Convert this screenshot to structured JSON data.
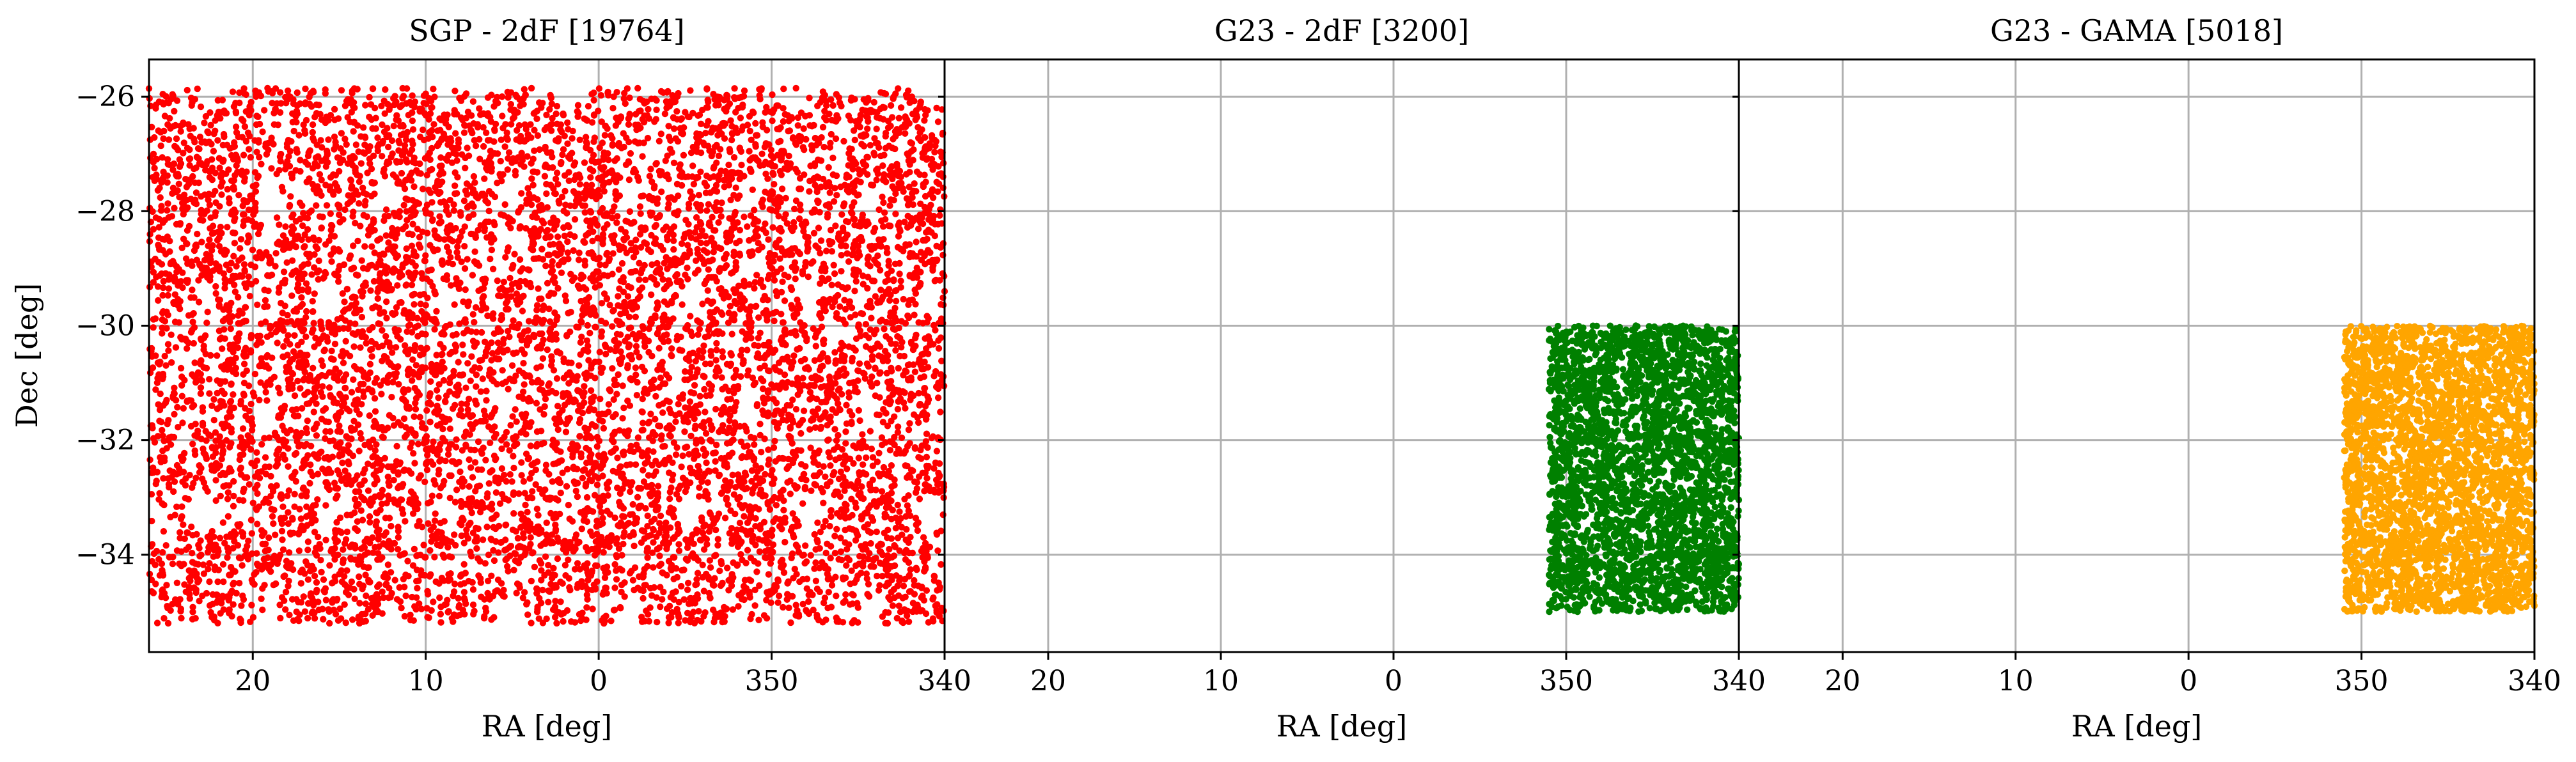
{
  "chart_data": [
    {
      "type": "scatter",
      "title": "SGP - 2dF [19764]",
      "xlabel": "RA [deg]",
      "ylabel": "Dec [deg]",
      "xticks": [
        "20",
        "10",
        "0",
        "350",
        "340"
      ],
      "yticks": [
        "−26",
        "−28",
        "−30",
        "−32",
        "−34"
      ],
      "x_range_deg": [
        26,
        -20
      ],
      "ylim": [
        -35.7,
        -25.35
      ],
      "grid": true,
      "color": "#ff0000",
      "point_count": 19764,
      "region": {
        "ra_min": 340,
        "ra_max": 26,
        "dec_min": -35.2,
        "dec_max": -25.85
      },
      "series": [
        {
          "x_region": [
            340,
            386
          ],
          "y_region": [
            -35.2,
            -25.85
          ]
        }
      ]
    },
    {
      "type": "scatter",
      "title": "G23 - 2dF [3200]",
      "xlabel": "RA [deg]",
      "ylabel": "",
      "xticks": [
        "20",
        "10",
        "0",
        "350",
        "340"
      ],
      "x_range_deg": [
        26,
        -20
      ],
      "ylim": [
        -35.7,
        -25.35
      ],
      "grid": true,
      "color": "#008000",
      "point_count": 3200,
      "region": {
        "ra_min": 340,
        "ra_max": 351,
        "dec_min": -35.0,
        "dec_max": -30.0
      }
    },
    {
      "type": "scatter",
      "title": "G23 - GAMA [5018]",
      "xlabel": "RA [deg]",
      "ylabel": "",
      "xticks": [
        "20",
        "10",
        "0",
        "350",
        "340"
      ],
      "x_range_deg": [
        26,
        -20
      ],
      "ylim": [
        -35.7,
        -25.35
      ],
      "grid": true,
      "color": "#ffa500",
      "point_count": 5018,
      "region": {
        "ra_min": 340,
        "ra_max": 351,
        "dec_min": -35.0,
        "dec_max": -30.0
      }
    }
  ]
}
